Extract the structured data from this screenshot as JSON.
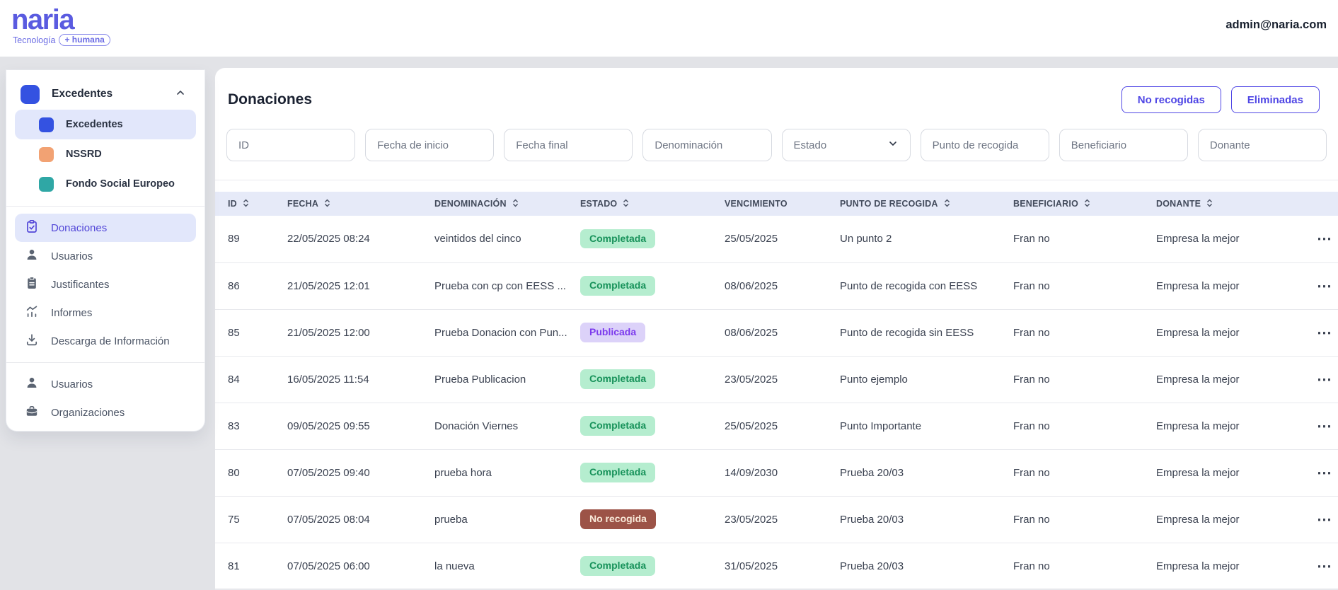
{
  "brand": {
    "name": "naria",
    "tagline_prefix": "Tecnología",
    "tagline_badge": "+ humana",
    "color": "#5a5be0"
  },
  "header": {
    "user_email": "admin@naria.com"
  },
  "sidebar": {
    "section": {
      "label": "Excedentes",
      "color": "#3452e1"
    },
    "section_items": [
      {
        "label": "Excedentes",
        "color": "#3452e1",
        "active": true
      },
      {
        "label": "NSSRD",
        "color": "#f2a273",
        "active": false
      },
      {
        "label": "Fondo Social Europeo",
        "color": "#2fa7a5",
        "active": false
      }
    ],
    "nav_items": [
      {
        "label": "Donaciones",
        "icon": "clipboard-check-icon",
        "active": true
      },
      {
        "label": "Usuarios",
        "icon": "user-icon",
        "active": false
      },
      {
        "label": "Justificantes",
        "icon": "clipboard-icon",
        "active": false
      },
      {
        "label": "Informes",
        "icon": "chart-icon",
        "active": false
      },
      {
        "label": "Descarga de Información",
        "icon": "download-icon",
        "active": false
      }
    ],
    "footer_items": [
      {
        "label": "Usuarios",
        "icon": "user-icon"
      },
      {
        "label": "Organizaciones",
        "icon": "briefcase-icon"
      }
    ],
    "active_color": "#5246d8"
  },
  "main": {
    "title": "Donaciones",
    "actions": [
      {
        "label": "No recogidas"
      },
      {
        "label": "Eliminadas"
      }
    ],
    "accent_color": "#4f46e5",
    "filters": [
      {
        "placeholder": "ID",
        "type": "text"
      },
      {
        "placeholder": "Fecha de inicio",
        "type": "text"
      },
      {
        "placeholder": "Fecha final",
        "type": "text"
      },
      {
        "placeholder": "Denominación",
        "type": "text"
      },
      {
        "placeholder": "Estado",
        "type": "select"
      },
      {
        "placeholder": "Punto de recogida",
        "type": "text"
      },
      {
        "placeholder": "Beneficiario",
        "type": "text"
      },
      {
        "placeholder": "Donante",
        "type": "text"
      }
    ],
    "table": {
      "columns": [
        {
          "key": "id",
          "label": "ID",
          "sortable": true
        },
        {
          "key": "fecha",
          "label": "FECHA",
          "sortable": true
        },
        {
          "key": "denominacion",
          "label": "DENOMINACIÓN",
          "sortable": true
        },
        {
          "key": "estado",
          "label": "ESTADO",
          "sortable": true
        },
        {
          "key": "vencimiento",
          "label": "VENCIMIENTO",
          "sortable": false
        },
        {
          "key": "punto",
          "label": "PUNTO DE RECOGIDA",
          "sortable": true
        },
        {
          "key": "beneficiario",
          "label": "BENEFICIARIO",
          "sortable": true
        },
        {
          "key": "donante",
          "label": "DONANTE",
          "sortable": true
        },
        {
          "key": "acciones",
          "label": "",
          "sortable": false
        }
      ],
      "status_styles": {
        "Completada": {
          "bg": "#b5edcf",
          "fg": "#17925a"
        },
        "Publicada": {
          "bg": "#dcd2f9",
          "fg": "#7c3aed"
        },
        "No recogida": {
          "bg": "#9c5347",
          "fg": "#f9ead9"
        }
      },
      "row_action_icon": "⋯",
      "rows": [
        {
          "id": "89",
          "fecha": "22/05/2025 08:24",
          "denominacion": "veintidos del cinco",
          "estado": "Completada",
          "vencimiento": "25/05/2025",
          "punto": "Un punto 2",
          "beneficiario": "Fran no",
          "donante": "Empresa la mejor"
        },
        {
          "id": "86",
          "fecha": "21/05/2025 12:01",
          "denominacion": "Prueba con cp con EESS ...",
          "estado": "Completada",
          "vencimiento": "08/06/2025",
          "punto": "Punto de recogida con EESS",
          "beneficiario": "Fran no",
          "donante": "Empresa la mejor"
        },
        {
          "id": "85",
          "fecha": "21/05/2025 12:00",
          "denominacion": "Prueba Donacion con Pun...",
          "estado": "Publicada",
          "vencimiento": "08/06/2025",
          "punto": "Punto de recogida sin EESS",
          "beneficiario": "Fran no",
          "donante": "Empresa la mejor"
        },
        {
          "id": "84",
          "fecha": "16/05/2025 11:54",
          "denominacion": "Prueba Publicacion",
          "estado": "Completada",
          "vencimiento": "23/05/2025",
          "punto": "Punto ejemplo",
          "beneficiario": "Fran no",
          "donante": "Empresa la mejor"
        },
        {
          "id": "83",
          "fecha": "09/05/2025 09:55",
          "denominacion": "Donación Viernes",
          "estado": "Completada",
          "vencimiento": "25/05/2025",
          "punto": "Punto Importante",
          "beneficiario": "Fran no",
          "donante": "Empresa la mejor"
        },
        {
          "id": "80",
          "fecha": "07/05/2025 09:40",
          "denominacion": "prueba hora",
          "estado": "Completada",
          "vencimiento": "14/09/2030",
          "punto": "Prueba 20/03",
          "beneficiario": "Fran no",
          "donante": "Empresa la mejor"
        },
        {
          "id": "75",
          "fecha": "07/05/2025 08:04",
          "denominacion": "prueba",
          "estado": "No recogida",
          "vencimiento": "23/05/2025",
          "punto": "Prueba 20/03",
          "beneficiario": "Fran no",
          "donante": "Empresa la mejor"
        },
        {
          "id": "81",
          "fecha": "07/05/2025 06:00",
          "denominacion": "la nueva",
          "estado": "Completada",
          "vencimiento": "31/05/2025",
          "punto": "Prueba 20/03",
          "beneficiario": "Fran no",
          "donante": "Empresa la mejor"
        }
      ]
    }
  }
}
